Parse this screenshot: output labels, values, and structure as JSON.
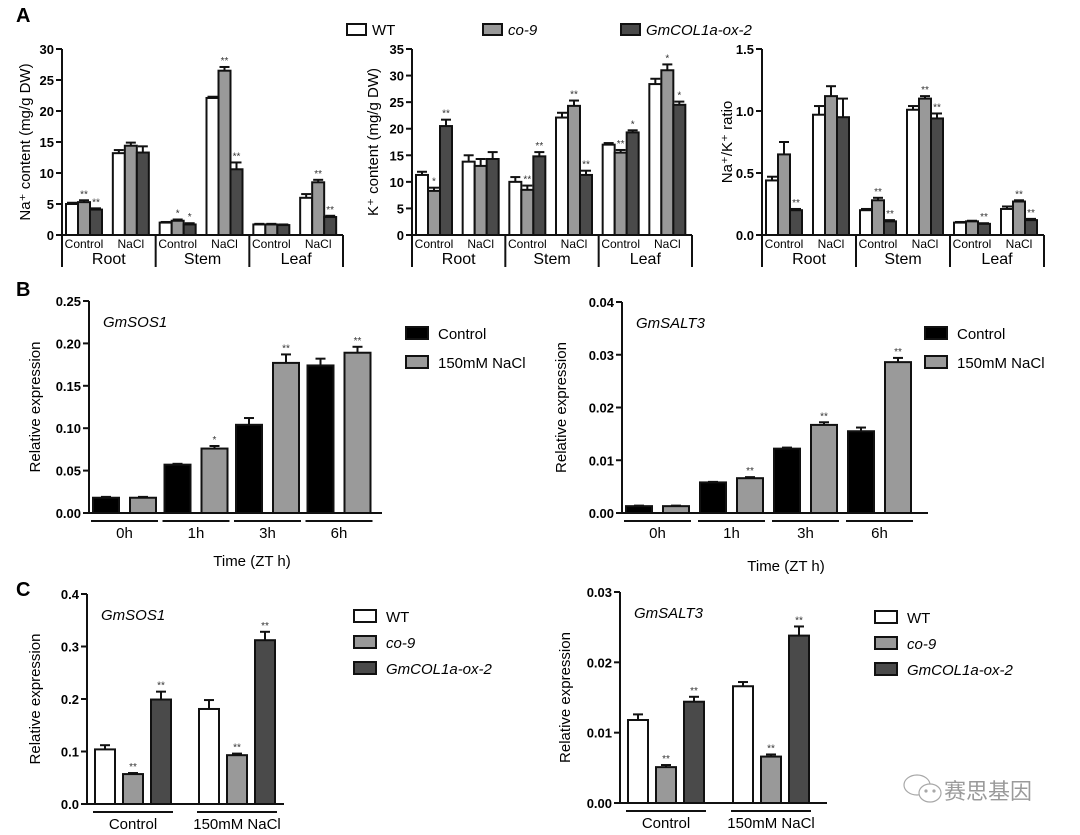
{
  "figure": {
    "panel_letters": [
      "A",
      "B",
      "C"
    ],
    "watermark": "赛思基因",
    "colors": {
      "WT": "#ffffff",
      "co-9": "#999999",
      "GmCOL1a-ox-2": "#4a4a4a",
      "Control": "#000000",
      "NaCl": "#9a9a9a",
      "axis": "#111111"
    }
  },
  "legend_A": {
    "items": [
      {
        "label": "WT",
        "italic": false,
        "color": "#ffffff"
      },
      {
        "label": "co-9",
        "italic": true,
        "color": "#999999"
      },
      {
        "label": "GmCOL1a-ox-2",
        "italic": true,
        "color": "#4a4a4a"
      }
    ]
  },
  "chart_data": [
    {
      "id": "A1",
      "type": "bar",
      "title": "",
      "ylabel": "Na⁺ content (mg/g DW)",
      "ylim": [
        0,
        30
      ],
      "yticks": [
        "0",
        "5",
        "10",
        "15",
        "20",
        "25",
        "30"
      ],
      "ytick_values": [
        0,
        5,
        10,
        15,
        20,
        25,
        30
      ],
      "groups": [
        "Root",
        "Stem",
        "Leaf"
      ],
      "subcategories": [
        "Control",
        "NaCl"
      ],
      "series_names": [
        "WT",
        "co-9",
        "GmCOL1a-ox-2"
      ],
      "values": [
        [
          [
            5.0,
            5.3,
            4.1
          ],
          [
            13.2,
            14.4,
            13.3
          ]
        ],
        [
          [
            2.0,
            2.3,
            1.7
          ],
          [
            22.1,
            26.5,
            10.6
          ]
        ],
        [
          [
            1.7,
            1.7,
            1.6
          ],
          [
            6.0,
            8.5,
            2.9
          ]
        ]
      ],
      "errors": [
        [
          [
            0.2,
            0.3,
            0.2
          ],
          [
            0.5,
            0.5,
            1.0
          ]
        ],
        [
          [
            0.1,
            0.2,
            0.2
          ],
          [
            0.2,
            0.6,
            1.1
          ]
        ],
        [
          [
            0.1,
            0.1,
            0.1
          ],
          [
            0.6,
            0.4,
            0.2
          ]
        ]
      ],
      "significance": [
        [
          [
            "",
            "**",
            "**"
          ],
          [
            "",
            "",
            ""
          ]
        ],
        [
          [
            "",
            "*",
            "*"
          ],
          [
            "",
            "**",
            "**"
          ]
        ],
        [
          [
            "",
            "",
            ""
          ],
          [
            "",
            "**",
            "**"
          ]
        ]
      ]
    },
    {
      "id": "A2",
      "type": "bar",
      "ylabel": "K⁺ content (mg/g DW)",
      "ylim": [
        0,
        35
      ],
      "yticks": [
        "0",
        "5",
        "10",
        "15",
        "20",
        "25",
        "30",
        "35"
      ],
      "ytick_values": [
        0,
        5,
        10,
        15,
        20,
        25,
        30,
        35
      ],
      "groups": [
        "Root",
        "Stem",
        "Leaf"
      ],
      "subcategories": [
        "Control",
        "NaCl"
      ],
      "series_names": [
        "WT",
        "co-9",
        "GmCOL1a-ox-2"
      ],
      "values": [
        [
          [
            11.3,
            8.3,
            20.5
          ],
          [
            13.8,
            13.0,
            14.3
          ]
        ],
        [
          [
            10.0,
            8.5,
            14.8
          ],
          [
            22.1,
            24.3,
            11.3
          ]
        ],
        [
          [
            17.0,
            15.5,
            19.3
          ],
          [
            28.4,
            31.0,
            24.5
          ]
        ]
      ],
      "errors": [
        [
          [
            0.6,
            0.6,
            1.2
          ],
          [
            1.2,
            1.3,
            1.3
          ]
        ],
        [
          [
            0.9,
            0.8,
            0.8
          ],
          [
            0.9,
            1.0,
            0.8
          ]
        ],
        [
          [
            0.3,
            0.5,
            0.4
          ],
          [
            1.0,
            1.1,
            0.6
          ]
        ]
      ],
      "significance": [
        [
          [
            "",
            "*",
            "**"
          ],
          [
            "",
            "",
            ""
          ]
        ],
        [
          [
            "",
            "**",
            "**"
          ],
          [
            "",
            "**",
            "**"
          ]
        ],
        [
          [
            "",
            "**",
            "*"
          ],
          [
            "",
            "*",
            "*"
          ]
        ]
      ]
    },
    {
      "id": "A3",
      "type": "bar",
      "ylabel": "Na⁺/K⁺ ratio",
      "ylim": [
        0,
        1.5
      ],
      "yticks": [
        "0.0",
        "0.5",
        "1.0",
        "1.5"
      ],
      "ytick_values": [
        0,
        0.5,
        1.0,
        1.5
      ],
      "groups": [
        "Root",
        "Stem",
        "Leaf"
      ],
      "subcategories": [
        "Control",
        "NaCl"
      ],
      "series_names": [
        "WT",
        "co-9",
        "GmCOL1a-ox-2"
      ],
      "values": [
        [
          [
            0.44,
            0.65,
            0.2
          ],
          [
            0.97,
            1.12,
            0.95
          ]
        ],
        [
          [
            0.2,
            0.28,
            0.11
          ],
          [
            1.01,
            1.1,
            0.94
          ]
        ],
        [
          [
            0.1,
            0.11,
            0.09
          ],
          [
            0.21,
            0.27,
            0.12
          ]
        ]
      ],
      "errors": [
        [
          [
            0.03,
            0.1,
            0.01
          ],
          [
            0.07,
            0.08,
            0.15
          ]
        ],
        [
          [
            0.01,
            0.02,
            0.01
          ],
          [
            0.03,
            0.02,
            0.04
          ]
        ],
        [
          [
            0.005,
            0.005,
            0.005
          ],
          [
            0.02,
            0.01,
            0.01
          ]
        ]
      ],
      "significance": [
        [
          [
            "",
            "",
            "**"
          ],
          [
            "",
            "",
            ""
          ]
        ],
        [
          [
            "",
            "**",
            "**"
          ],
          [
            "",
            "**",
            "**"
          ]
        ],
        [
          [
            "",
            "",
            "**"
          ],
          [
            "",
            "**",
            "**"
          ]
        ]
      ]
    },
    {
      "id": "B1",
      "type": "bar",
      "gene": "GmSOS1",
      "ylabel": "Relative expression",
      "xlabel": "Time (ZT h)",
      "ylim": [
        0,
        0.25
      ],
      "yticks": [
        "0.00",
        "0.05",
        "0.10",
        "0.15",
        "0.20",
        "0.25"
      ],
      "ytick_values": [
        0,
        0.05,
        0.1,
        0.15,
        0.2,
        0.25
      ],
      "categories": [
        "0h",
        "1h",
        "3h",
        "6h"
      ],
      "series": [
        {
          "name": "Control",
          "color": "#000000",
          "values": [
            0.018,
            0.057,
            0.104,
            0.174
          ],
          "errors": [
            0.001,
            0.001,
            0.008,
            0.008
          ],
          "significance": [
            "",
            "",
            "",
            ""
          ]
        },
        {
          "name": "150mM NaCl",
          "color": "#9a9a9a",
          "values": [
            0.018,
            0.076,
            0.177,
            0.189
          ],
          "errors": [
            0.001,
            0.003,
            0.01,
            0.007
          ],
          "significance": [
            "",
            "*",
            "**",
            "**"
          ]
        }
      ],
      "legend": "right"
    },
    {
      "id": "B2",
      "type": "bar",
      "gene": "GmSALT3",
      "ylabel": "Relative expression",
      "xlabel": "Time (ZT h)",
      "ylim": [
        0,
        0.04
      ],
      "yticks": [
        "0.00",
        "0.01",
        "0.02",
        "0.03",
        "0.04"
      ],
      "ytick_values": [
        0,
        0.01,
        0.02,
        0.03,
        0.04
      ],
      "categories": [
        "0h",
        "1h",
        "3h",
        "6h"
      ],
      "series": [
        {
          "name": "Control",
          "color": "#000000",
          "values": [
            0.0013,
            0.0058,
            0.0122,
            0.0155
          ],
          "errors": [
            0.0001,
            0.0001,
            0.0002,
            0.0007
          ],
          "significance": [
            "",
            "",
            "",
            ""
          ]
        },
        {
          "name": "150mM NaCl",
          "color": "#9a9a9a",
          "values": [
            0.0013,
            0.0066,
            0.0167,
            0.0286
          ],
          "errors": [
            0.0001,
            0.0002,
            0.0005,
            0.0008
          ],
          "significance": [
            "",
            "**",
            "**",
            "**"
          ]
        }
      ],
      "legend": "right"
    },
    {
      "id": "C1",
      "type": "bar",
      "gene": "GmSOS1",
      "ylabel": "Relative expression",
      "ylim": [
        0,
        0.4
      ],
      "yticks": [
        "0.0",
        "0.1",
        "0.2",
        "0.3",
        "0.4"
      ],
      "ytick_values": [
        0,
        0.1,
        0.2,
        0.3,
        0.4
      ],
      "categories": [
        "Control",
        "150mM NaCl"
      ],
      "series": [
        {
          "name": "WT",
          "color": "#ffffff",
          "values": [
            0.104,
            0.181
          ],
          "errors": [
            0.008,
            0.017
          ],
          "significance": [
            "",
            ""
          ]
        },
        {
          "name": "co-9",
          "color": "#999999",
          "values": [
            0.057,
            0.093
          ],
          "errors": [
            0.002,
            0.003
          ],
          "significance": [
            "**",
            "**"
          ]
        },
        {
          "name": "GmCOL1a-ox-2",
          "color": "#4a4a4a",
          "values": [
            0.199,
            0.312
          ],
          "errors": [
            0.015,
            0.016
          ],
          "significance": [
            "**",
            "**"
          ]
        }
      ],
      "legend": "right"
    },
    {
      "id": "C2",
      "type": "bar",
      "gene": "GmSALT3",
      "ylabel": "Relative expression",
      "ylim": [
        0,
        0.03
      ],
      "yticks": [
        "0.00",
        "0.01",
        "0.02",
        "0.03"
      ],
      "ytick_values": [
        0,
        0.01,
        0.02,
        0.03
      ],
      "categories": [
        "Control",
        "150mM NaCl"
      ],
      "series": [
        {
          "name": "WT",
          "color": "#ffffff",
          "values": [
            0.0118,
            0.0166
          ],
          "errors": [
            0.0008,
            0.0006
          ],
          "significance": [
            "",
            ""
          ]
        },
        {
          "name": "co-9",
          "color": "#999999",
          "values": [
            0.0051,
            0.0066
          ],
          "errors": [
            0.0003,
            0.0003
          ],
          "significance": [
            "**",
            "**"
          ]
        },
        {
          "name": "GmCOL1a-ox-2",
          "color": "#4a4a4a",
          "values": [
            0.0144,
            0.0238
          ],
          "errors": [
            0.0007,
            0.0013
          ],
          "significance": [
            "**",
            "**"
          ]
        }
      ],
      "legend": "right"
    }
  ]
}
